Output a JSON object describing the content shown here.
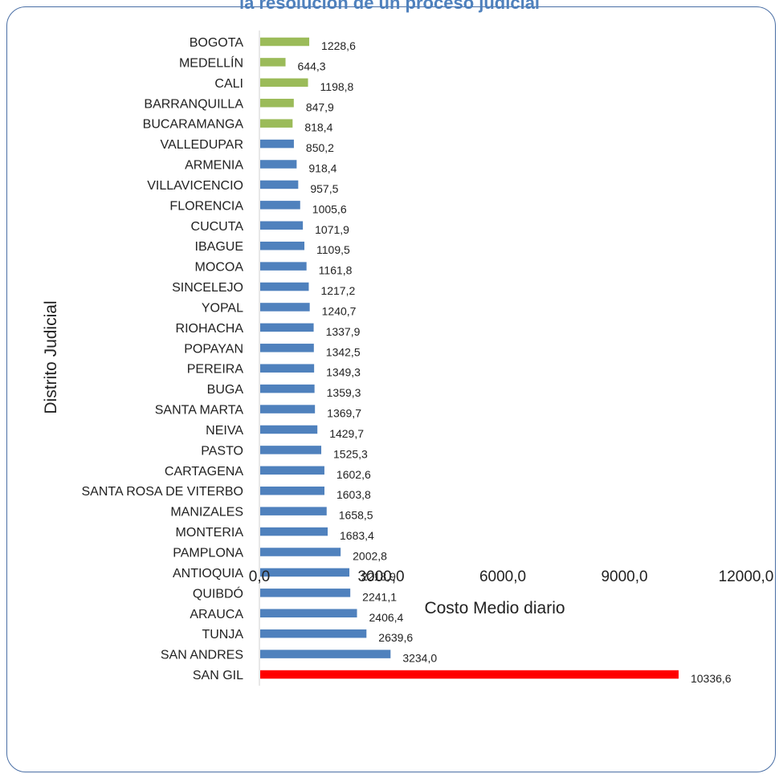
{
  "title": "la resolución de un proceso judicial",
  "chart_data": {
    "type": "bar",
    "orientation": "horizontal",
    "xlabel": "Costo Medio diario",
    "ylabel": "Distrito Judicial",
    "xlim": [
      0,
      12000
    ],
    "xticks": [
      "0,0",
      "3000,0",
      "6000,0",
      "9000,0",
      "12000,0"
    ],
    "tick_values": [
      0,
      3000,
      6000,
      9000,
      12000
    ],
    "grid": false,
    "legend": "none",
    "colors": {
      "green": "#9bbb59",
      "blue": "#4f81bd",
      "red": "#ff0000"
    },
    "bars": [
      {
        "category": "BOGOTA",
        "value": 1228.6,
        "label": "1228,6",
        "color": "green"
      },
      {
        "category": "MEDELLÍN",
        "value": 644.3,
        "label": "644,3",
        "color": "green"
      },
      {
        "category": "CALI",
        "value": 1198.8,
        "label": "1198,8",
        "color": "green"
      },
      {
        "category": "BARRANQUILLA",
        "value": 847.9,
        "label": "847,9",
        "color": "green"
      },
      {
        "category": "BUCARAMANGA",
        "value": 818.4,
        "label": "818,4",
        "color": "green"
      },
      {
        "category": "VALLEDUPAR",
        "value": 850.2,
        "label": "850,2",
        "color": "blue"
      },
      {
        "category": "ARMENIA",
        "value": 918.4,
        "label": "918,4",
        "color": "blue"
      },
      {
        "category": "VILLAVICENCIO",
        "value": 957.5,
        "label": "957,5",
        "color": "blue"
      },
      {
        "category": "FLORENCIA",
        "value": 1005.6,
        "label": "1005,6",
        "color": "blue"
      },
      {
        "category": "CUCUTA",
        "value": 1071.9,
        "label": "1071,9",
        "color": "blue"
      },
      {
        "category": "IBAGUE",
        "value": 1109.5,
        "label": "1109,5",
        "color": "blue"
      },
      {
        "category": "MOCOA",
        "value": 1161.8,
        "label": "1161,8",
        "color": "blue"
      },
      {
        "category": "SINCELEJO",
        "value": 1217.2,
        "label": "1217,2",
        "color": "blue"
      },
      {
        "category": "YOPAL",
        "value": 1240.7,
        "label": "1240,7",
        "color": "blue"
      },
      {
        "category": "RIOHACHA",
        "value": 1337.9,
        "label": "1337,9",
        "color": "blue"
      },
      {
        "category": "POPAYAN",
        "value": 1342.5,
        "label": "1342,5",
        "color": "blue"
      },
      {
        "category": "PEREIRA",
        "value": 1349.3,
        "label": "1349,3",
        "color": "blue"
      },
      {
        "category": "BUGA",
        "value": 1359.3,
        "label": "1359,3",
        "color": "blue"
      },
      {
        "category": "SANTA MARTA",
        "value": 1369.7,
        "label": "1369,7",
        "color": "blue"
      },
      {
        "category": "NEIVA",
        "value": 1429.7,
        "label": "1429,7",
        "color": "blue"
      },
      {
        "category": "PASTO",
        "value": 1525.3,
        "label": "1525,3",
        "color": "blue"
      },
      {
        "category": "CARTAGENA",
        "value": 1602.6,
        "label": "1602,6",
        "color": "blue"
      },
      {
        "category": "SANTA ROSA DE VITERBO",
        "value": 1603.8,
        "label": "1603,8",
        "color": "blue"
      },
      {
        "category": "MANIZALES",
        "value": 1658.5,
        "label": "1658,5",
        "color": "blue"
      },
      {
        "category": "MONTERIA",
        "value": 1683.4,
        "label": "1683,4",
        "color": "blue"
      },
      {
        "category": "PAMPLONA",
        "value": 2002.8,
        "label": "2002,8",
        "color": "blue"
      },
      {
        "category": "ANTIOQUIA",
        "value": 2218.9,
        "label": "2218,9",
        "color": "blue"
      },
      {
        "category": "QUIBDÓ",
        "value": 2241.1,
        "label": "2241,1",
        "color": "blue"
      },
      {
        "category": "ARAUCA",
        "value": 2406.4,
        "label": "2406,4",
        "color": "blue"
      },
      {
        "category": "TUNJA",
        "value": 2639.6,
        "label": "2639,6",
        "color": "blue"
      },
      {
        "category": "SAN ANDRES",
        "value": 3234.0,
        "label": "3234,0",
        "color": "blue"
      },
      {
        "category": "SAN GIL",
        "value": 10336.6,
        "label": "10336,6",
        "color": "red"
      }
    ]
  }
}
